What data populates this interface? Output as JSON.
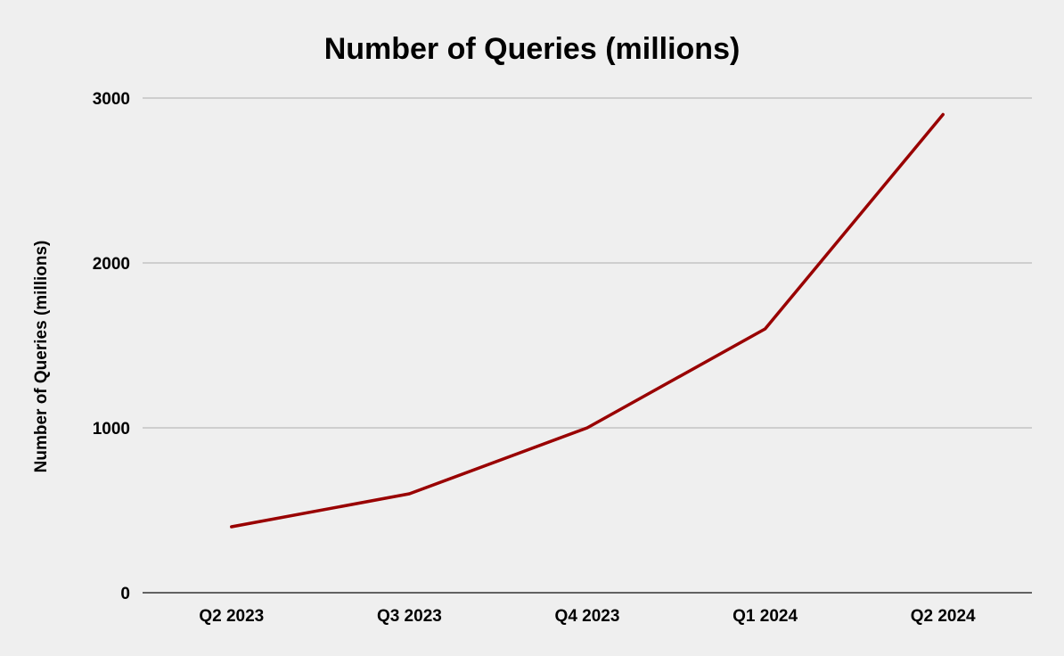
{
  "colors": {
    "background": "#efefef",
    "series": "#990000",
    "grid": "#c4c4c4",
    "axis": "#333333"
  },
  "chart_data": {
    "type": "line",
    "title": "Number of Queries (millions)",
    "xlabel": "",
    "ylabel": "Number of Queries (millions)",
    "categories": [
      "Q2 2023",
      "Q3 2023",
      "Q4 2023",
      "Q1 2024",
      "Q2 2024"
    ],
    "series": [
      {
        "values": [
          400,
          600,
          1000,
          1600,
          2900
        ]
      }
    ],
    "ylim": [
      0,
      3000
    ],
    "yticks": [
      0,
      1000,
      2000,
      3000
    ],
    "grid": true,
    "legend": "none"
  }
}
